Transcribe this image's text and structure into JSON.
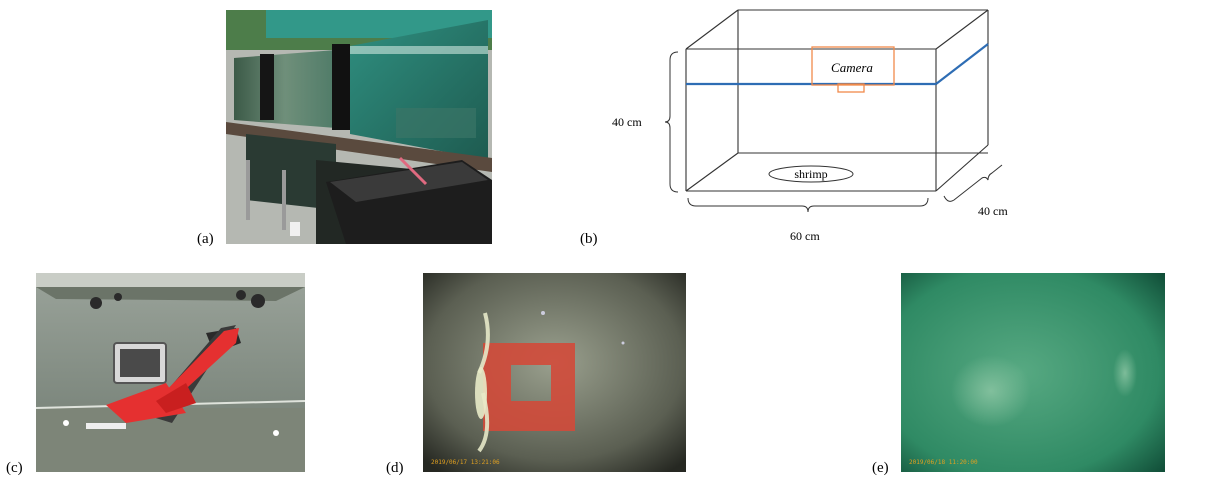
{
  "panels": {
    "a": {
      "label": "(a)"
    },
    "b": {
      "label": "(b)"
    },
    "c": {
      "label": "(c)"
    },
    "d": {
      "label": "(d)",
      "timestamp": "2019/06/17 13:21:06"
    },
    "e": {
      "label": "(e)",
      "timestamp": "2019/06/18 11:20:00"
    }
  },
  "diagram": {
    "camera_label": "Camera",
    "shrimp_label": "shrimp",
    "height_label": "40 cm",
    "width_label": "60 cm",
    "depth_label": "40 cm",
    "colors": {
      "water_line": "#2e6db4",
      "camera": "#f08a4b",
      "box": "#333333"
    }
  }
}
